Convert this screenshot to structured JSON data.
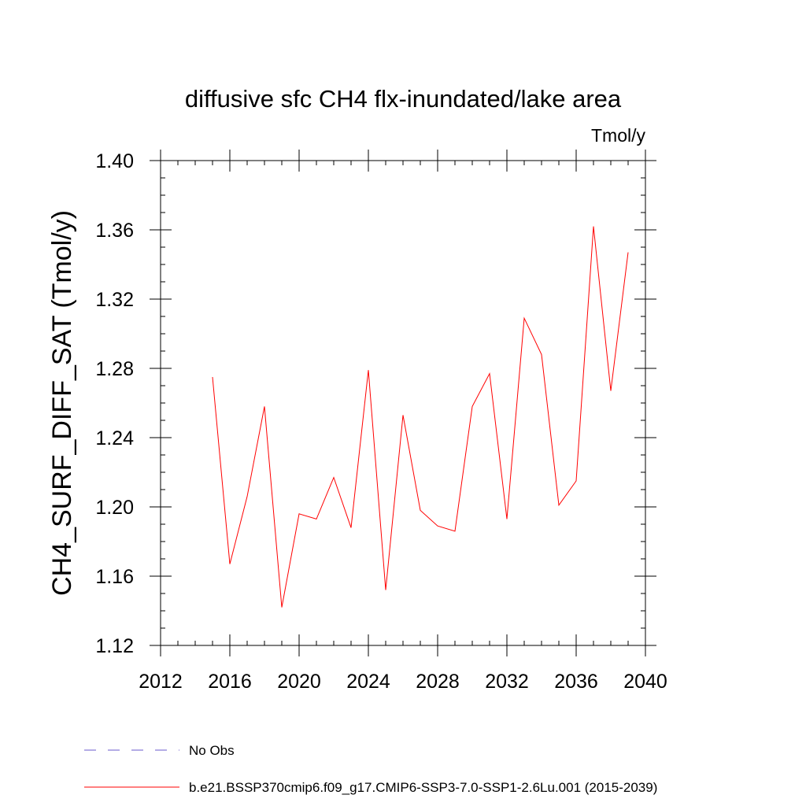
{
  "chart_data": {
    "type": "line",
    "title": "diffusive sfc CH4 flx-inundated/lake area",
    "units": "Tmol/y",
    "ylabel": "CH4_SURF_DIFF_SAT  (Tmol/y)",
    "xlabel": "",
    "xlim": [
      2012,
      2040
    ],
    "ylim": [
      1.12,
      1.4
    ],
    "x_ticks": [
      "2012",
      "2016",
      "2020",
      "2024",
      "2028",
      "2032",
      "2036",
      "2040"
    ],
    "y_ticks": [
      "1.12",
      "1.16",
      "1.20",
      "1.24",
      "1.28",
      "1.32",
      "1.36",
      "1.40"
    ],
    "grid": false,
    "series": [
      {
        "name": "b.e21.BSSP370cmip6.f09_g17.CMIP6-SSP3-7.0-SSP1-2.6Lu.001 (2015-2039)",
        "color": "#ff0000",
        "x": [
          2015,
          2016,
          2017,
          2018,
          2019,
          2020,
          2021,
          2022,
          2023,
          2024,
          2025,
          2026,
          2027,
          2028,
          2029,
          2030,
          2031,
          2032,
          2033,
          2034,
          2035,
          2036,
          2037,
          2038,
          2039
        ],
        "values": [
          1.275,
          1.167,
          1.206,
          1.258,
          1.142,
          1.196,
          1.193,
          1.217,
          1.188,
          1.279,
          1.152,
          1.253,
          1.198,
          1.189,
          1.186,
          1.258,
          1.277,
          1.193,
          1.309,
          1.288,
          1.201,
          1.215,
          1.362,
          1.267,
          1.347
        ]
      }
    ],
    "legend": [
      {
        "label": "No Obs",
        "color": "#6a5acd",
        "style": "dashed"
      },
      {
        "label": "b.e21.BSSP370cmip6.f09_g17.CMIP6-SSP3-7.0-SSP1-2.6Lu.001 (2015-2039)",
        "color": "#ff0000",
        "style": "solid"
      }
    ],
    "legend_placement": "bottom"
  }
}
